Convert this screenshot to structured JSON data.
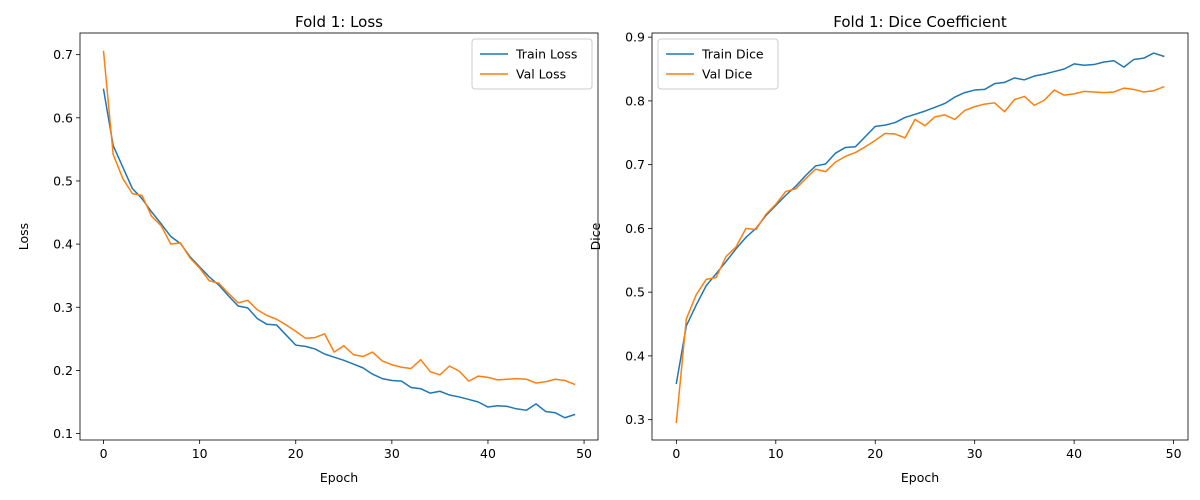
{
  "chart_data": [
    {
      "type": "line",
      "title": "Fold 1: Loss",
      "xlabel": "Epoch",
      "ylabel": "Loss",
      "xlim": [
        -2.45,
        51.45
      ],
      "ylim": [
        0.0898,
        0.7343
      ],
      "xticks": [
        0,
        10,
        20,
        30,
        40,
        50
      ],
      "yticks": [
        0.1,
        0.2,
        0.3,
        0.4,
        0.5,
        0.6,
        0.7
      ],
      "grid": false,
      "legend_position": "top-right",
      "x": [
        0,
        1,
        2,
        3,
        4,
        5,
        6,
        7,
        8,
        9,
        10,
        11,
        12,
        13,
        14,
        15,
        16,
        17,
        18,
        19,
        20,
        21,
        22,
        23,
        24,
        25,
        26,
        27,
        28,
        29,
        30,
        31,
        32,
        33,
        34,
        35,
        36,
        37,
        38,
        39,
        40,
        41,
        42,
        43,
        44,
        45,
        46,
        47,
        48,
        49
      ],
      "series": [
        {
          "name": "Train Loss",
          "color": "#1f77b4",
          "values": [
            0.645,
            0.556,
            0.522,
            0.488,
            0.472,
            0.451,
            0.432,
            0.412,
            0.401,
            0.38,
            0.364,
            0.348,
            0.335,
            0.318,
            0.302,
            0.299,
            0.282,
            0.273,
            0.272,
            0.256,
            0.24,
            0.238,
            0.234,
            0.226,
            0.221,
            0.216,
            0.21,
            0.204,
            0.194,
            0.187,
            0.184,
            0.183,
            0.173,
            0.171,
            0.164,
            0.167,
            0.161,
            0.158,
            0.154,
            0.15,
            0.142,
            0.144,
            0.143,
            0.139,
            0.137,
            0.147,
            0.135,
            0.133,
            0.125,
            0.13
          ]
        },
        {
          "name": "Val Loss",
          "color": "#ff7f0e",
          "values": [
            0.705,
            0.542,
            0.504,
            0.48,
            0.477,
            0.444,
            0.429,
            0.4,
            0.402,
            0.378,
            0.362,
            0.342,
            0.338,
            0.322,
            0.307,
            0.311,
            0.296,
            0.287,
            0.281,
            0.272,
            0.262,
            0.251,
            0.252,
            0.258,
            0.229,
            0.239,
            0.225,
            0.222,
            0.229,
            0.215,
            0.209,
            0.205,
            0.203,
            0.217,
            0.198,
            0.193,
            0.207,
            0.199,
            0.183,
            0.191,
            0.189,
            0.185,
            0.186,
            0.187,
            0.186,
            0.18,
            0.182,
            0.186,
            0.184,
            0.178
          ]
        }
      ]
    },
    {
      "type": "line",
      "title": "Fold 1: Dice Coefficient",
      "xlabel": "Epoch",
      "ylabel": "Dice",
      "xlim": [
        -2.45,
        51.45
      ],
      "ylim": [
        0.2681,
        0.9065
      ],
      "xticks": [
        0,
        10,
        20,
        30,
        40,
        50
      ],
      "yticks": [
        0.3,
        0.4,
        0.5,
        0.6,
        0.7,
        0.8,
        0.9
      ],
      "grid": false,
      "legend_position": "top-left",
      "x": [
        0,
        1,
        2,
        3,
        4,
        5,
        6,
        7,
        8,
        9,
        10,
        11,
        12,
        13,
        14,
        15,
        16,
        17,
        18,
        19,
        20,
        21,
        22,
        23,
        24,
        25,
        26,
        27,
        28,
        29,
        30,
        31,
        32,
        33,
        34,
        35,
        36,
        37,
        38,
        39,
        40,
        41,
        42,
        43,
        44,
        45,
        46,
        47,
        48,
        49
      ],
      "series": [
        {
          "name": "Train Dice",
          "color": "#1f77b4",
          "values": [
            0.357,
            0.447,
            0.48,
            0.51,
            0.529,
            0.548,
            0.568,
            0.586,
            0.6,
            0.62,
            0.636,
            0.652,
            0.666,
            0.683,
            0.698,
            0.701,
            0.718,
            0.727,
            0.728,
            0.744,
            0.76,
            0.762,
            0.766,
            0.774,
            0.779,
            0.784,
            0.79,
            0.796,
            0.806,
            0.813,
            0.817,
            0.818,
            0.827,
            0.829,
            0.836,
            0.833,
            0.839,
            0.842,
            0.846,
            0.85,
            0.858,
            0.856,
            0.857,
            0.861,
            0.863,
            0.853,
            0.865,
            0.867,
            0.875,
            0.87
          ]
        },
        {
          "name": "Val Dice",
          "color": "#ff7f0e",
          "values": [
            0.296,
            0.458,
            0.496,
            0.52,
            0.523,
            0.556,
            0.571,
            0.6,
            0.598,
            0.622,
            0.638,
            0.658,
            0.662,
            0.678,
            0.693,
            0.689,
            0.704,
            0.713,
            0.719,
            0.728,
            0.738,
            0.749,
            0.748,
            0.742,
            0.771,
            0.761,
            0.775,
            0.778,
            0.771,
            0.785,
            0.791,
            0.795,
            0.797,
            0.783,
            0.802,
            0.807,
            0.793,
            0.801,
            0.817,
            0.809,
            0.811,
            0.815,
            0.814,
            0.813,
            0.814,
            0.82,
            0.818,
            0.814,
            0.816,
            0.822
          ]
        }
      ]
    }
  ]
}
